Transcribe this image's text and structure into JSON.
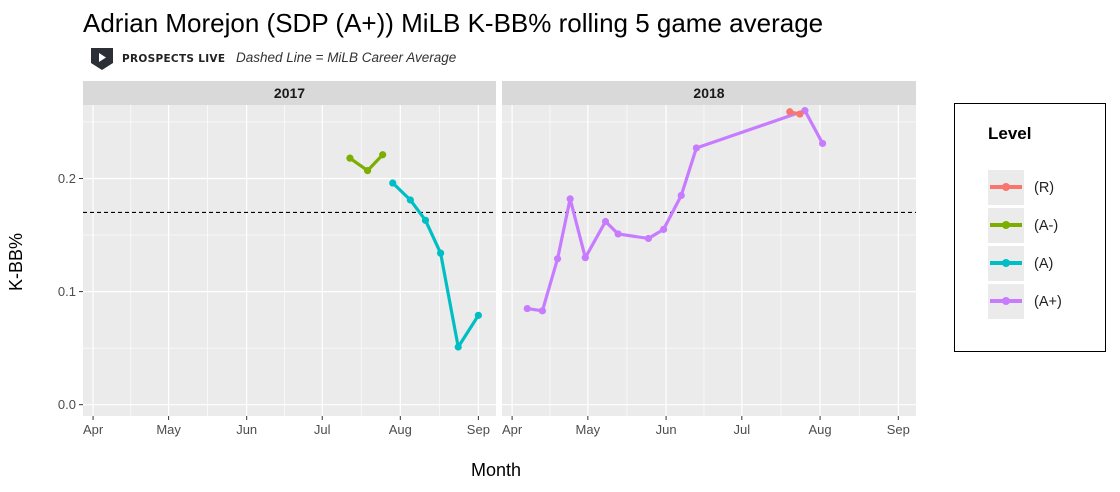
{
  "header": {
    "title": "Adrian Morejon (SDP (A+)) MiLB K-BB% rolling 5 game average",
    "brand": "PROSPECTS LIVE",
    "caption": "Dashed Line = MiLB Career Average"
  },
  "colors": {
    "R": "#F8766D",
    "A-": "#7CAE00",
    "A": "#00BFC4",
    "A+": "#C77CFF",
    "panel_bg": "#EBEBEB",
    "strip_bg": "#D9D9D9"
  },
  "icons": {
    "brand": "play-pennant-icon"
  },
  "chart_data": {
    "type": "line",
    "title": "Adrian Morejon (SDP (A+)) MiLB K-BB% rolling 5 game average",
    "xlabel": "Month",
    "ylabel": "K-BB%",
    "ylim": [
      -0.01,
      0.265
    ],
    "yticks": [
      0.0,
      0.1,
      0.2
    ],
    "ytick_labels": [
      "0.0",
      "0.1",
      "0.2"
    ],
    "xticks": [
      "Apr",
      "May",
      "Jun",
      "Jul",
      "Aug",
      "Sep"
    ],
    "reference_line": {
      "value": 0.17,
      "style": "dashed"
    },
    "grid": true,
    "legend": {
      "title": "Level",
      "position": "right",
      "entries": [
        "(R)",
        "(A-)",
        "(A)",
        "(A+)"
      ]
    },
    "panels": [
      {
        "label": "2017",
        "series": [
          {
            "name": "(A-)",
            "level": "A-",
            "points": [
              [
                "2017-07-12",
                0.218
              ],
              [
                "2017-07-19",
                0.207
              ],
              [
                "2017-07-25",
                0.221
              ]
            ]
          },
          {
            "name": "(A)",
            "level": "A",
            "points": [
              [
                "2017-07-29",
                0.196
              ],
              [
                "2017-08-05",
                0.181
              ],
              [
                "2017-08-11",
                0.163
              ],
              [
                "2017-08-17",
                0.134
              ],
              [
                "2017-08-24",
                0.051
              ],
              [
                "2017-09-01",
                0.079
              ]
            ]
          }
        ]
      },
      {
        "label": "2018",
        "series": [
          {
            "name": "(A+)",
            "level": "A+",
            "points": [
              [
                "2018-04-07",
                0.085
              ],
              [
                "2018-04-13",
                0.083
              ],
              [
                "2018-04-19",
                0.129
              ],
              [
                "2018-04-24",
                0.182
              ],
              [
                "2018-04-30",
                0.13
              ],
              [
                "2018-05-08",
                0.162
              ],
              [
                "2018-05-13",
                0.151
              ],
              [
                "2018-05-25",
                0.147
              ],
              [
                "2018-05-31",
                0.155
              ],
              [
                "2018-06-07",
                0.185
              ],
              [
                "2018-06-13",
                0.227
              ],
              [
                "2018-07-26",
                0.26
              ],
              [
                "2018-08-02",
                0.231
              ]
            ]
          },
          {
            "name": "(R)",
            "level": "R",
            "points": [
              [
                "2018-07-20",
                0.259
              ],
              [
                "2018-07-24",
                0.257
              ]
            ]
          }
        ]
      }
    ]
  }
}
